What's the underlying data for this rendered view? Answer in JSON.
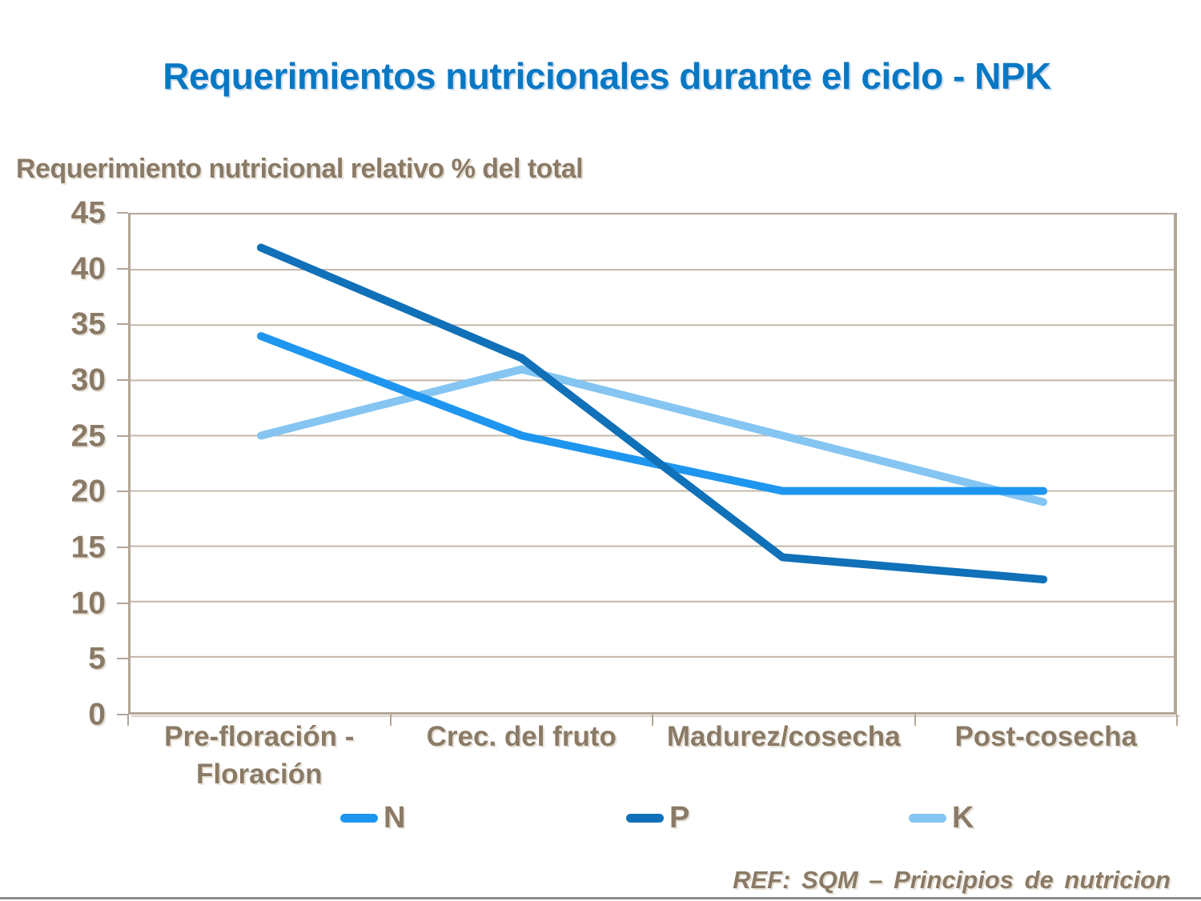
{
  "title": "Requerimientos nutricionales durante el ciclo - NPK",
  "y_axis_title": "Requerimiento nutricional relativo % del total",
  "footer_ref": "REF: SQM – Principios de nutricion",
  "colors": {
    "title_blue": "#0878C4",
    "text_brown": "#8A7A66",
    "axis_frame_tan": "#B3A696",
    "gridline_tan": "#C2B6A8",
    "footer_rule_gray": "#8C8C8C",
    "series_n_blue": "#1E96F0",
    "series_p_dark_blue": "#1070B8",
    "series_k_light_blue": "#85C5F2"
  },
  "chart_data": {
    "type": "line",
    "categories": [
      "Pre-floración -\nFloración",
      "Crec. del fruto",
      "Madurez/cosecha",
      "Post-cosecha"
    ],
    "series": [
      {
        "name": "N",
        "color": "#1E96F0",
        "values": [
          34,
          25,
          20,
          20
        ]
      },
      {
        "name": "P",
        "color": "#1070B8",
        "values": [
          42,
          32,
          14,
          12
        ]
      },
      {
        "name": "K",
        "color": "#85C5F2",
        "values": [
          25,
          31,
          25,
          19
        ]
      }
    ],
    "title": "Requerimientos nutricionales durante el ciclo - NPK",
    "xlabel": "",
    "ylabel": "Requerimiento nutricional relativo % del total",
    "ylim": [
      0,
      45
    ],
    "ytick_step": 5,
    "ytick_labels": [
      "0",
      "5",
      "10",
      "15",
      "20",
      "25",
      "30",
      "35",
      "40",
      "45"
    ],
    "grid": true,
    "legend_position": "bottom",
    "legend_entries": [
      "N",
      "P",
      "K"
    ],
    "draw_order": [
      "K",
      "N",
      "P"
    ]
  }
}
